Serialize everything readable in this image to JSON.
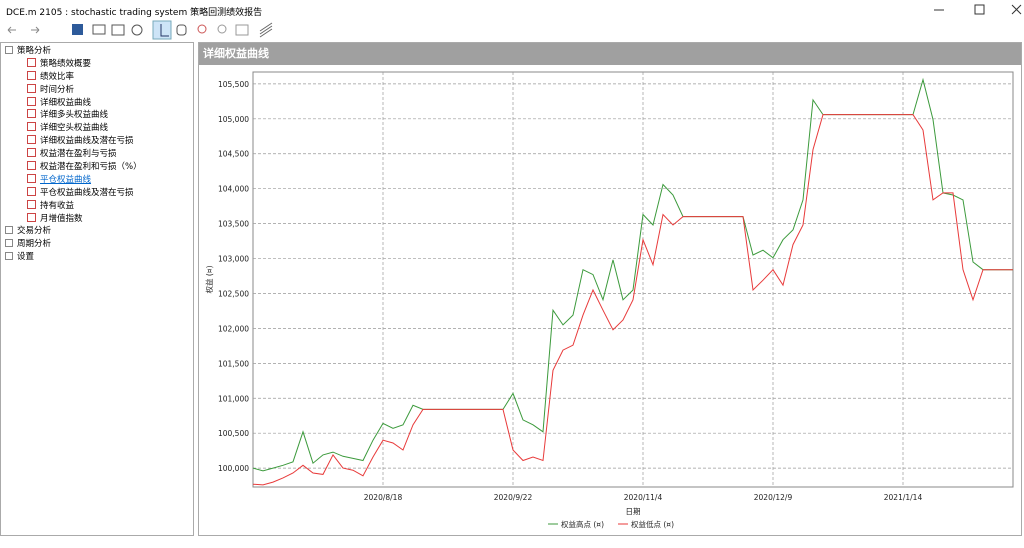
{
  "window": {
    "title": "DCE.m 2105 : stochastic trading system 策略回测绩效报告"
  },
  "tree": [
    {
      "label": "策略分析",
      "children": [
        "策略绩效概要",
        "绩效比率",
        "时间分析",
        "详细权益曲线",
        "详细多头权益曲线",
        "详细空头权益曲线",
        "详细权益曲线及潜在亏损",
        "权益潜在盈利与亏损",
        "权益潜在盈利和亏损（%）",
        "平仓权益曲线",
        "平仓权益曲线及潜在亏损",
        "持有收益",
        "月增值指数"
      ]
    },
    {
      "label": "交易分析"
    },
    {
      "label": "周期分析"
    },
    {
      "label": "设置"
    }
  ],
  "panel": {
    "title": "详细权益曲线"
  },
  "chart_data": {
    "type": "line",
    "xlabel": "日期",
    "ylabel": "权益 (¤)",
    "categories": [
      null,
      null,
      null,
      null,
      null,
      null,
      null,
      null,
      null,
      null,
      null,
      null,
      null,
      "2020/8/18",
      null,
      null,
      null,
      null,
      null,
      null,
      null,
      null,
      null,
      null,
      null,
      null,
      "2020/9/22",
      null,
      null,
      null,
      null,
      null,
      null,
      null,
      null,
      null,
      null,
      null,
      null,
      "2020/11/4",
      null,
      null,
      null,
      null,
      null,
      null,
      null,
      null,
      null,
      null,
      null,
      null,
      "2020/12/9",
      null,
      null,
      null,
      null,
      null,
      null,
      null,
      null,
      null,
      null,
      null,
      null,
      "2021/1/14",
      null,
      null,
      null,
      null,
      null,
      null,
      null,
      null,
      null,
      null,
      null
    ],
    "series": [
      {
        "name": "权益高点 (¤)",
        "color": "#3c9a3c",
        "values": [
          100000,
          99960,
          100000,
          100040,
          100090,
          100520,
          100070,
          100190,
          100230,
          100170,
          100140,
          100110,
          100400,
          100640,
          100570,
          100620,
          100900,
          100840,
          100840,
          100840,
          100840,
          100840,
          100840,
          100840,
          100840,
          100840,
          101070,
          100690,
          100620,
          100520,
          102260,
          102050,
          102190,
          102840,
          102770,
          102410,
          102980,
          102410,
          102550,
          103630,
          103480,
          104060,
          103910,
          103600,
          103600,
          103600,
          103600,
          103600,
          103600,
          103600,
          103050,
          103120,
          103010,
          103270,
          103410,
          103840,
          105270,
          105060,
          105060,
          105060,
          105060,
          105060,
          105060,
          105060,
          105060,
          105060,
          105060,
          105560,
          104990,
          103940,
          103910,
          103840,
          102950,
          102840,
          102840,
          102840,
          102840
        ]
      },
      {
        "name": "权益低点 (¤)",
        "color": "#e83a3a",
        "values": [
          99770,
          99760,
          99800,
          99860,
          99930,
          100040,
          99930,
          99910,
          100190,
          100000,
          99970,
          99890,
          100160,
          100400,
          100360,
          100260,
          100620,
          100840,
          100840,
          100840,
          100840,
          100840,
          100840,
          100840,
          100840,
          100840,
          100260,
          100110,
          100160,
          100110,
          101400,
          101690,
          101760,
          102190,
          102550,
          102260,
          101980,
          102120,
          102410,
          103270,
          102910,
          103630,
          103480,
          103600,
          103600,
          103600,
          103600,
          103600,
          103600,
          103600,
          102550,
          102690,
          102840,
          102620,
          103200,
          103480,
          104560,
          105060,
          105060,
          105060,
          105060,
          105060,
          105060,
          105060,
          105060,
          105060,
          105060,
          104840,
          103840,
          103940,
          103940,
          102840,
          102410,
          102840,
          102840,
          102840,
          102840
        ]
      }
    ],
    "ylim": [
      99730,
      105670
    ],
    "yticks": [
      {
        "value": 100000,
        "label": "100,000"
      },
      {
        "value": 100500,
        "label": "100,500"
      },
      {
        "value": 101000,
        "label": "101,000"
      },
      {
        "value": 101500,
        "label": "101,500"
      },
      {
        "value": 102000,
        "label": "102,000"
      },
      {
        "value": 102500,
        "label": "102,500"
      },
      {
        "value": 103000,
        "label": "103,000"
      },
      {
        "value": 103500,
        "label": "103,500"
      },
      {
        "value": 104000,
        "label": "104,000"
      },
      {
        "value": 104500,
        "label": "104,500"
      },
      {
        "value": 105000,
        "label": "105,000"
      },
      {
        "value": 105500,
        "label": "105,500"
      }
    ],
    "grid": true
  }
}
